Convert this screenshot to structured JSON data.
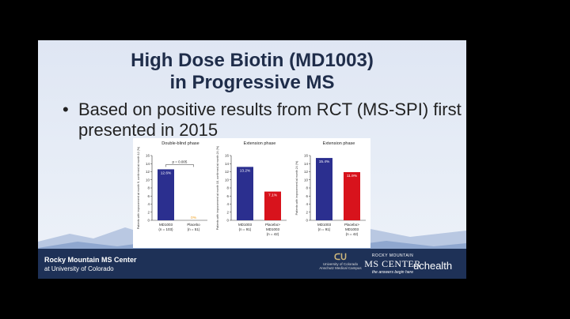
{
  "slide": {
    "title_line1": "High Dose Biotin (MD1003)",
    "title_line2": "in Progressive MS",
    "bullet_char": "•",
    "bullet_text": "Based on positive results from RCT (MS-SPI) first presented in 2015"
  },
  "footer": {
    "center_line1": "Rocky Mountain MS Center",
    "center_line2": "at University of Colorado",
    "cu_line1": "University of Colorado",
    "cu_line2": "Anschutz Medical Campus",
    "rmms_top": "ROCKY MOUNTAIN",
    "rmms_main": "MS CENTER",
    "rmms_tag": "the answers begin here",
    "uchealth": "uchealth",
    "colors": {
      "footer_bg": "#1e3157"
    }
  },
  "chart_data": [
    {
      "type": "bar",
      "title": "Double-blind phase",
      "ylabel": "Patients with improvement at month 9, confirmed at month 12 (%)",
      "ylim": [
        0,
        16
      ],
      "yticks": [
        "0",
        "2",
        "4",
        "6",
        "8",
        "10",
        "12",
        "14",
        "16"
      ],
      "categories": [
        "MD1003 (n = 103)",
        "Placebo (n = 51)"
      ],
      "cat_line1": [
        "MD1003",
        "Placebo"
      ],
      "cat_line2": [
        "(n = 103)",
        "(n = 51)"
      ],
      "values": [
        12.6,
        0
      ],
      "labels": [
        "12.6%",
        "0%"
      ],
      "colors": [
        "#2b2f8f",
        "#f0a020"
      ],
      "annotation": "p = 0.005"
    },
    {
      "type": "bar",
      "title": "Extension phase",
      "ylabel": "Patients with improvement at month 18, confirmed at month 24 (%)",
      "ylim": [
        0,
        16
      ],
      "yticks": [
        "0",
        "2",
        "4",
        "6",
        "8",
        "10",
        "12",
        "14",
        "16"
      ],
      "categories": [
        "MD1003 (n = 91)",
        "Placebo> MD1003 (n = 42)"
      ],
      "cat_line1": [
        "MD1003",
        "Placebo>"
      ],
      "cat_line2": [
        "(n = 91)",
        "MD1003"
      ],
      "cat_line3": [
        "",
        "(n = 42)"
      ],
      "values": [
        13.2,
        7.1
      ],
      "labels": [
        "13.2%",
        "7.1%"
      ],
      "colors": [
        "#2b2f8f",
        "#d8131c"
      ]
    },
    {
      "type": "bar",
      "title": "Extension phase",
      "ylabel": "Patients with improvement at month 24 (%)",
      "ylim": [
        0,
        16
      ],
      "yticks": [
        "0",
        "2",
        "4",
        "6",
        "8",
        "10",
        "12",
        "14",
        "16"
      ],
      "categories": [
        "MD1003 (n = 91)",
        "Placebo> MD1003 (n = 42)"
      ],
      "cat_line1": [
        "MD1003",
        "Placebo>"
      ],
      "cat_line2": [
        "(n = 91)",
        "MD1003"
      ],
      "cat_line3": [
        "",
        "(n = 42)"
      ],
      "values": [
        15.4,
        11.9
      ],
      "labels": [
        "15.4%",
        "11.9%"
      ],
      "colors": [
        "#2b2f8f",
        "#d8131c"
      ]
    }
  ]
}
